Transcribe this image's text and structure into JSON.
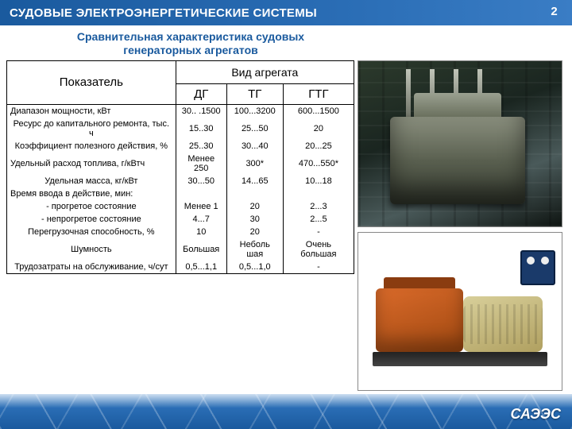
{
  "header": {
    "title": "СУДОВЫЕ ЭЛЕКТРОЭНЕРГЕТИЧЕСКИЕ СИСТЕМЫ",
    "page": "2"
  },
  "subtitle": "Сравнительная характеристика судовых генераторных агрегатов",
  "table": {
    "param_header": "Показатель",
    "aggregate_header": "Вид агрегата",
    "columns": [
      "ДГ",
      "ТГ",
      "ГТГ"
    ],
    "rows": [
      {
        "param": "Диапазон мощности, кВт",
        "v": [
          "30.. .1500",
          "100...3200",
          "600...1500"
        ]
      },
      {
        "param": "Ресурс до капитального ремонта, тыс. ч",
        "v": [
          "15..30",
          "25...50",
          "20"
        ]
      },
      {
        "param": "Коэффициент полезного действия, %",
        "v": [
          "25..30",
          "30...40",
          "20...25"
        ]
      },
      {
        "param": "Удельный расход топлива, г/кВтч",
        "v": [
          "Менее 250",
          "300*",
          "470...550*"
        ]
      },
      {
        "param": "Удельная масса, кг/кВт",
        "v": [
          "30...50",
          "14...65",
          "10...18"
        ]
      },
      {
        "param": "Время ввода в действие, мин:",
        "v": [
          "",
          "",
          ""
        ]
      },
      {
        "param": "- прогретое состояние",
        "v": [
          "Менее 1",
          "20",
          "2...3"
        ]
      },
      {
        "param": "- непрогретое состояние",
        "v": [
          "4...7",
          "30",
          "2...5"
        ]
      },
      {
        "param": "Перегрузочная способность, %",
        "v": [
          "10",
          "20",
          "-"
        ]
      },
      {
        "param": "Шумность",
        "v": [
          "Большая",
          "Неболь шая",
          "Очень большая"
        ]
      },
      {
        "param": "Трудозатраты на обслуживание, ч/сут",
        "v": [
          "0,5...1,1",
          "0,5...1,0",
          "-"
        ]
      }
    ]
  },
  "footer": {
    "label": "САЭЭС"
  },
  "colors": {
    "header_bg_from": "#1a5a9e",
    "header_bg_to": "#3a7dc5",
    "subtitle_color": "#1a5a9e",
    "table_border": "#000000"
  }
}
